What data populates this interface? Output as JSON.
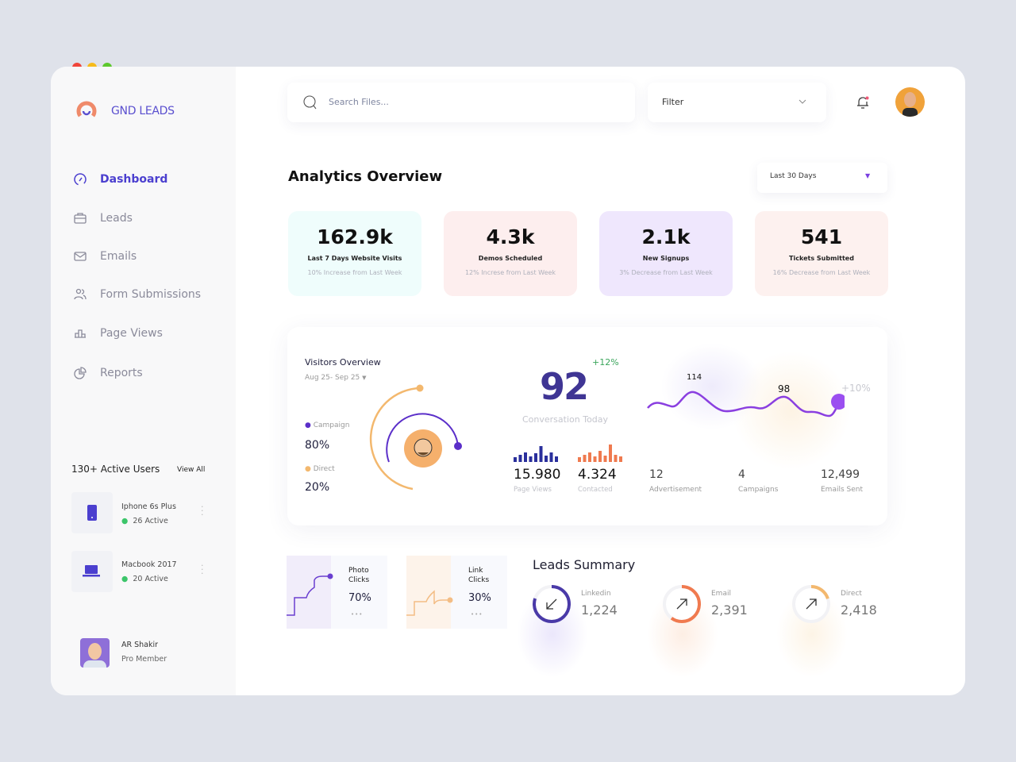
{
  "window": {
    "controls": [
      "close",
      "minimize",
      "maximize"
    ],
    "colors": {
      "close": "#f0453a",
      "minimize": "#f6bb1a",
      "maximize": "#5dc82d"
    }
  },
  "brand": {
    "name": "GND LEADS",
    "accent": "#5a4fcf"
  },
  "sidebar": {
    "items": [
      {
        "label": "Dashboard",
        "icon": "gauge-icon",
        "active": true
      },
      {
        "label": "Leads",
        "icon": "briefcase-icon"
      },
      {
        "label": "Emails",
        "icon": "mail-icon"
      },
      {
        "label": "Form Submissions",
        "icon": "users-icon"
      },
      {
        "label": "Page Views",
        "icon": "bar-chart-icon"
      },
      {
        "label": "Reports",
        "icon": "pie-chart-icon"
      }
    ],
    "active_users": {
      "title": "130+ Active Users",
      "view_all": "View All",
      "devices": [
        {
          "name": "Iphone 6s Plus",
          "status": "26 Active",
          "icon": "phone-icon"
        },
        {
          "name": "Macbook 2017",
          "status": "20 Active",
          "icon": "laptop-icon"
        }
      ]
    },
    "profile": {
      "name": "AR Shakir",
      "role": "Pro Member"
    }
  },
  "header": {
    "search_placeholder": "Search Files...",
    "filter_label": "Filter"
  },
  "analytics": {
    "title": "Analytics Overview",
    "range": "Last 30 Days",
    "cards": [
      {
        "value": "162.9k",
        "label": "Last 7 Days Website Visits",
        "sub": "10% Increase from Last Week",
        "bg": "#effdfc"
      },
      {
        "value": "4.3k",
        "label": "Demos Scheduled",
        "sub": "12% Increse from Last Week",
        "bg": "#fdeeee"
      },
      {
        "value": "2.1k",
        "label": "New Signups",
        "sub": "3% Decrease from Last Week",
        "bg": "#efe7fd"
      },
      {
        "value": "541",
        "label": "Tickets Submitted",
        "sub": "16% Decrease from Last Week",
        "bg": "#fdf1ef"
      }
    ]
  },
  "visitors": {
    "title": "Visitors Overview",
    "range": "Aug 25- Sep 25",
    "campaign": {
      "label": "Campaign",
      "value": "80%",
      "color": "#5b2fc9"
    },
    "direct": {
      "label": "Direct",
      "value": "20%",
      "color": "#f3b86e"
    },
    "conversation": {
      "value": "92",
      "label": "Conversation Today",
      "change": "+12%"
    },
    "page_views": {
      "value": "15.980",
      "label": "Page Views",
      "color": "#2a2f9c"
    },
    "contacted": {
      "value": "4.324",
      "label": "Contacted",
      "color": "#ef7a4f"
    },
    "wave": {
      "peak1": "114",
      "peak2": "98",
      "change": "+10%"
    },
    "stats": [
      {
        "value": "12",
        "label": "Advertisement"
      },
      {
        "value": "4",
        "label": "Campaigns"
      },
      {
        "value": "12,499",
        "label": "Emails Sent"
      }
    ]
  },
  "clicks": [
    {
      "label1": "Photo",
      "label2": "Clicks",
      "value": "70%",
      "color": "#6a3fd0"
    },
    {
      "label1": "Link",
      "label2": "Clicks",
      "value": "30%",
      "color": "#f3bd85"
    }
  ],
  "leads": {
    "title": "Leads Summary",
    "items": [
      {
        "label": "Linkedin",
        "value": "1,224",
        "color": "#4a3aa8",
        "icon": "arrow-down-left-icon",
        "progress": 0.8
      },
      {
        "label": "Email",
        "value": "2,391",
        "color": "#f07a4f",
        "icon": "arrow-up-right-icon",
        "progress": 0.6
      },
      {
        "label": "Direct",
        "value": "2,418",
        "color": "#f3b86e",
        "icon": "arrow-up-right-icon",
        "progress": 0.2
      }
    ]
  }
}
